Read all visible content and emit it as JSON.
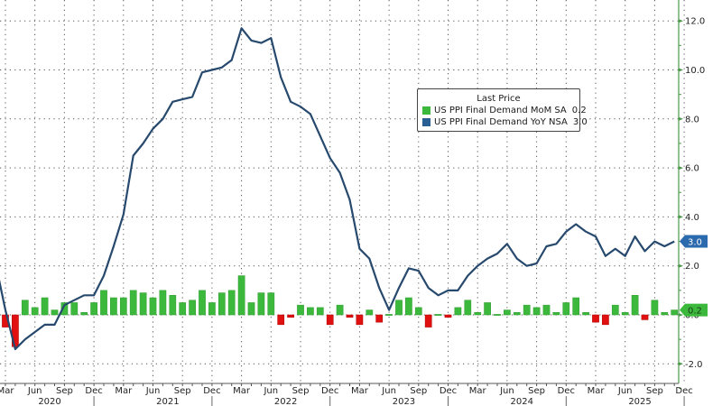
{
  "legend": {
    "title": "Last Price",
    "items": [
      {
        "label": "US PPI Final Demand MoM SA",
        "value": "0.2",
        "color": "#3cb93c"
      },
      {
        "label": "US PPI Final Demand YoY NSA",
        "value": "3.0",
        "color": "#2a5f94"
      }
    ]
  },
  "y_axis": {
    "ticks": [
      "12.0",
      "10.0",
      "8.0",
      "6.0",
      "4.0",
      "2.0",
      "0.0",
      "-2.0"
    ],
    "last_value_tags": [
      {
        "series": "YoY",
        "text": "3.0",
        "color": "#2a6aad"
      },
      {
        "series": "MoM",
        "text": "0.2",
        "color": "#3cb93c"
      }
    ]
  },
  "x_axis": {
    "month_labels": [
      "Mar",
      "Jun",
      "Sep",
      "Dec",
      "Mar",
      "Jun",
      "Sep",
      "Dec",
      "Mar",
      "Jun",
      "Sep",
      "Dec",
      "Mar",
      "Jun",
      "Sep",
      "Dec",
      "Mar",
      "Jun",
      "Sep",
      "Dec",
      "Mar",
      "Jun",
      "Sep",
      "Dec"
    ],
    "year_labels": [
      "2020",
      "2021",
      "2022",
      "2023",
      "2024",
      "2025"
    ]
  },
  "colors": {
    "line": "#27496d",
    "bar_positive": "#3cb93c",
    "bar_negative": "#e01010",
    "axis": "#4a9a4a",
    "grid": "#555555"
  },
  "chart_data": {
    "type": "bar+line",
    "title": "",
    "xlabel": "",
    "ylabel": "",
    "ylim": [
      -2.8,
      12.8
    ],
    "grid": true,
    "legend_position": "upper center-right",
    "x_start": "2020-03",
    "x": [
      "2020-03",
      "2020-04",
      "2020-05",
      "2020-06",
      "2020-07",
      "2020-08",
      "2020-09",
      "2020-10",
      "2020-11",
      "2020-12",
      "2021-01",
      "2021-02",
      "2021-03",
      "2021-04",
      "2021-05",
      "2021-06",
      "2021-07",
      "2021-08",
      "2021-09",
      "2021-10",
      "2021-11",
      "2021-12",
      "2022-01",
      "2022-02",
      "2022-03",
      "2022-04",
      "2022-05",
      "2022-06",
      "2022-07",
      "2022-08",
      "2022-09",
      "2022-10",
      "2022-11",
      "2022-12",
      "2023-01",
      "2023-02",
      "2023-03",
      "2023-04",
      "2023-05",
      "2023-06",
      "2023-07",
      "2023-08",
      "2023-09",
      "2023-10",
      "2023-11",
      "2023-12",
      "2024-01",
      "2024-02",
      "2024-03",
      "2024-04",
      "2024-05",
      "2024-06",
      "2024-07",
      "2024-08",
      "2024-09",
      "2024-10",
      "2024-11",
      "2024-12",
      "2025-01",
      "2025-02",
      "2025-03",
      "2025-04",
      "2025-05",
      "2025-06",
      "2025-07",
      "2025-08",
      "2025-09",
      "2025-10",
      "2025-11"
    ],
    "series": [
      {
        "name": "US PPI Final Demand MoM SA",
        "type": "bar",
        "values": [
          -0.5,
          -1.3,
          0.6,
          0.3,
          0.7,
          0.2,
          0.5,
          0.5,
          0.1,
          0.5,
          1.0,
          0.7,
          0.7,
          1.0,
          0.9,
          0.7,
          1.0,
          0.8,
          0.5,
          0.6,
          1.0,
          0.5,
          0.9,
          1.0,
          1.6,
          0.5,
          0.9,
          0.9,
          -0.4,
          -0.1,
          0.4,
          0.3,
          0.3,
          -0.4,
          0.4,
          -0.1,
          -0.4,
          0.2,
          -0.3,
          0.0,
          0.6,
          0.7,
          0.3,
          -0.5,
          0.0,
          -0.1,
          0.3,
          0.6,
          0.1,
          0.5,
          0.0,
          0.2,
          0.1,
          0.4,
          0.3,
          0.4,
          0.1,
          0.5,
          0.7,
          0.1,
          -0.3,
          -0.4,
          0.4,
          0.1,
          0.8,
          -0.2,
          0.6,
          0.1,
          0.2
        ]
      },
      {
        "name": "US PPI Final Demand YoY NSA",
        "type": "line",
        "values": [
          0.2,
          -1.4,
          -1.0,
          -0.7,
          -0.4,
          -0.4,
          0.4,
          0.6,
          0.8,
          0.8,
          1.6,
          2.8,
          4.1,
          6.5,
          7.0,
          7.6,
          8.0,
          8.7,
          8.8,
          8.9,
          9.9,
          10.0,
          10.1,
          10.4,
          11.7,
          11.2,
          11.1,
          11.3,
          9.7,
          8.7,
          8.5,
          8.2,
          7.3,
          6.4,
          5.8,
          4.7,
          2.7,
          2.3,
          1.1,
          0.2,
          1.1,
          1.9,
          1.8,
          1.1,
          0.8,
          1.0,
          1.0,
          1.6,
          2.0,
          2.3,
          2.5,
          2.9,
          2.3,
          2.0,
          2.1,
          2.8,
          2.9,
          3.4,
          3.7,
          3.4,
          3.2,
          2.4,
          2.7,
          2.4,
          3.2,
          2.6,
          3.0,
          2.8,
          3.0
        ]
      }
    ],
    "last_values": {
      "MoM": 0.2,
      "YoY": 3.0
    }
  }
}
